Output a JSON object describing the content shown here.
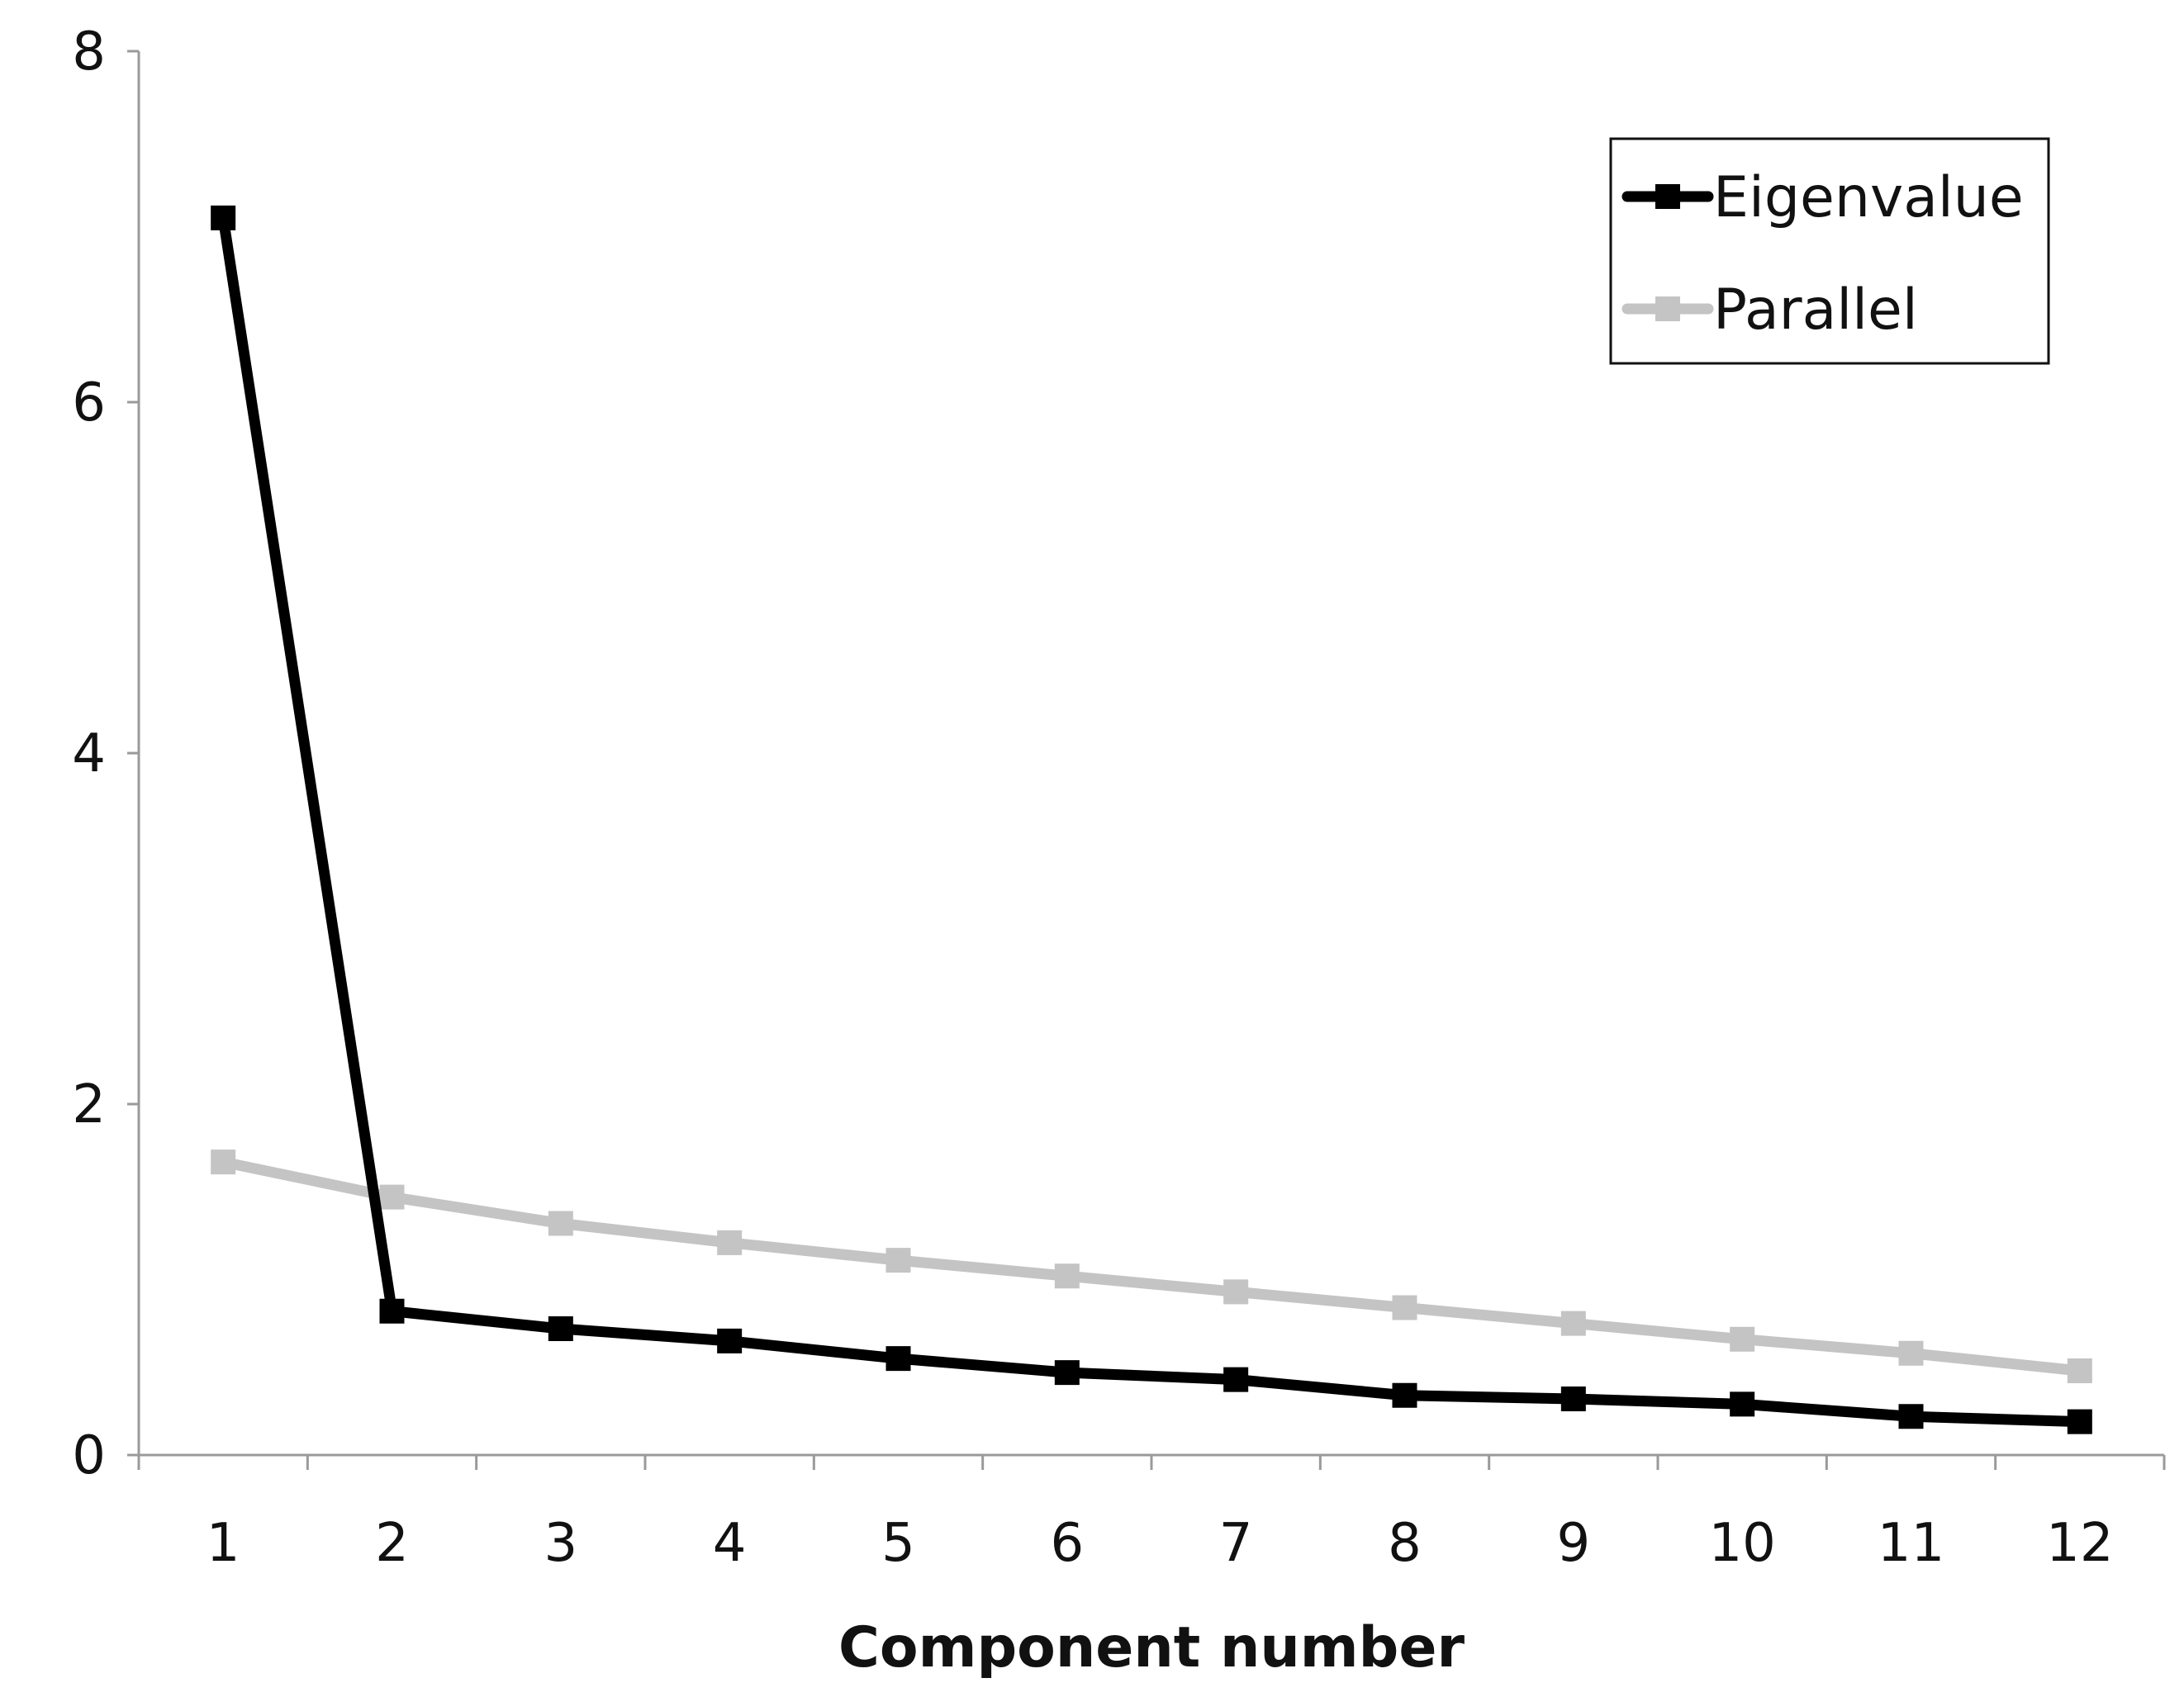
{
  "chart_data": {
    "type": "line",
    "title": "",
    "xlabel": "Component number",
    "ylabel": "",
    "categories": [
      "1",
      "2",
      "3",
      "4",
      "5",
      "6",
      "7",
      "8",
      "9",
      "10",
      "11",
      "12"
    ],
    "y_ticks": [
      "0",
      "2",
      "4",
      "6",
      "8"
    ],
    "ylim": [
      0,
      8
    ],
    "grid": false,
    "legend_position": "top-right",
    "series": [
      {
        "name": "Eigenvalue",
        "color": "#000000",
        "marker": "square",
        "values": [
          7.05,
          0.82,
          0.72,
          0.65,
          0.55,
          0.47,
          0.43,
          0.34,
          0.32,
          0.29,
          0.22,
          0.19
        ]
      },
      {
        "name": "Parallel",
        "color": "#c4c4c4",
        "marker": "square",
        "values": [
          1.67,
          1.47,
          1.32,
          1.21,
          1.11,
          1.02,
          0.93,
          0.84,
          0.75,
          0.66,
          0.58,
          0.48
        ]
      }
    ]
  }
}
